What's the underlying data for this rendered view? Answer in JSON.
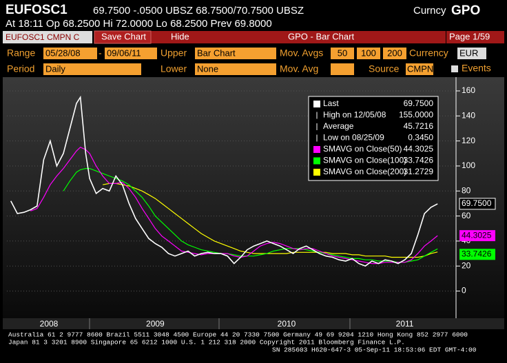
{
  "header": {
    "ticker": "EUFOSC1",
    "quote": "69.7500 -.0500 UBSZ 68.7500/70.7500 UBSZ",
    "market": "Curncy",
    "function": "GPO",
    "line2": "At 18:11 Op 68.2500  Hi 72.0000  Lo 68.2500  Prev 69.8000"
  },
  "toolbar": {
    "security": "EUFOSC1 CMPN C",
    "save": "Save Chart",
    "hide": "Hide",
    "title": "GPO - Bar Chart",
    "page": "Page 1/59"
  },
  "controls": {
    "range_label": "Range",
    "start": "05/28/08",
    "dash": "-",
    "end": "09/06/11",
    "upper_label": "Upper",
    "upper": "Bar Chart",
    "movavgs_label": "Mov. Avgs",
    "ma1": "50",
    "ma2": "100",
    "ma3": "200",
    "currency_label": "Currency",
    "currency": "EUR",
    "period_label": "Period",
    "period": "Daily",
    "lower_label": "Lower",
    "lower": "None",
    "movavg_label": "Mov. Avg",
    "source_label": "Source",
    "source": "CMPN",
    "events": "Events"
  },
  "chart_data": {
    "type": "line",
    "x": [
      2008.4,
      2008.45,
      2008.5,
      2008.55,
      2008.6,
      2008.65,
      2008.7,
      2008.75,
      2008.8,
      2008.85,
      2008.9,
      2008.93,
      2008.97,
      2009.0,
      2009.05,
      2009.1,
      2009.15,
      2009.2,
      2009.25,
      2009.3,
      2009.35,
      2009.4,
      2009.45,
      2009.5,
      2009.55,
      2009.6,
      2009.65,
      2009.7,
      2009.75,
      2009.8,
      2009.85,
      2009.9,
      2009.95,
      2010.0,
      2010.05,
      2010.1,
      2010.15,
      2010.2,
      2010.25,
      2010.3,
      2010.35,
      2010.4,
      2010.45,
      2010.5,
      2010.55,
      2010.6,
      2010.65,
      2010.7,
      2010.75,
      2010.8,
      2010.85,
      2010.9,
      2010.95,
      2011.0,
      2011.05,
      2011.1,
      2011.15,
      2011.2,
      2011.25,
      2011.3,
      2011.35,
      2011.4,
      2011.45,
      2011.5,
      2011.55,
      2011.6,
      2011.65
    ],
    "series": [
      {
        "name": "Last",
        "color": "#ffffff",
        "values": [
          72,
          62,
          63,
          65,
          68,
          105,
          120,
          100,
          110,
          130,
          150,
          155,
          110,
          90,
          78,
          82,
          80,
          92,
          85,
          70,
          58,
          50,
          42,
          38,
          35,
          30,
          28,
          30,
          32,
          28,
          30,
          31,
          30,
          30,
          28,
          22,
          27,
          33,
          36,
          38,
          40,
          38,
          36,
          33,
          30,
          34,
          36,
          33,
          30,
          28,
          27,
          25,
          24,
          26,
          22,
          20,
          24,
          22,
          25,
          24,
          22,
          25,
          30,
          45,
          62,
          67,
          69.75
        ]
      },
      {
        "name": "SMAVG on Close(50)",
        "color": "#ff00ff",
        "values": [
          null,
          null,
          null,
          64,
          66,
          75,
          85,
          92,
          98,
          105,
          112,
          115,
          113,
          110,
          100,
          92,
          86,
          86,
          87,
          82,
          75,
          66,
          58,
          50,
          44,
          40,
          36,
          32,
          31,
          30,
          29,
          30,
          30,
          30,
          30,
          28,
          27,
          28,
          32,
          36,
          38,
          39,
          38,
          36,
          34,
          33,
          34,
          34,
          32,
          30,
          28,
          27,
          26,
          25,
          24,
          23,
          22,
          22,
          23,
          23,
          23,
          23,
          25,
          30,
          36,
          40,
          44.3025
        ]
      },
      {
        "name": "SMAVG on Close(100)",
        "color": "#00ff00",
        "values": [
          null,
          null,
          null,
          null,
          null,
          null,
          null,
          null,
          80,
          88,
          95,
          97,
          98,
          98,
          96,
          94,
          92,
          90,
          88,
          85,
          80,
          75,
          68,
          60,
          55,
          50,
          45,
          40,
          37,
          35,
          33,
          32,
          31,
          30,
          30,
          29,
          28,
          28,
          28,
          29,
          30,
          32,
          33,
          34,
          34,
          34,
          33,
          32,
          31,
          30,
          29,
          28,
          27,
          26,
          26,
          25,
          25,
          24,
          24,
          24,
          23,
          23,
          24,
          25,
          28,
          31,
          33.7426
        ]
      },
      {
        "name": "SMAVG on Close(200)",
        "color": "#ffff00",
        "values": [
          null,
          null,
          null,
          null,
          null,
          null,
          null,
          null,
          null,
          null,
          null,
          null,
          null,
          null,
          null,
          85,
          86,
          86,
          85,
          84,
          82,
          80,
          77,
          74,
          70,
          66,
          62,
          58,
          54,
          50,
          46,
          43,
          40,
          38,
          36,
          34,
          32,
          31,
          30,
          30,
          30,
          30,
          30,
          30,
          31,
          31,
          31,
          31,
          31,
          31,
          30,
          30,
          30,
          29,
          29,
          28,
          28,
          28,
          28,
          27,
          27,
          27,
          27,
          27,
          28,
          30,
          31.2729
        ]
      }
    ],
    "legend": {
      "last": "69.7500",
      "high_label": "High on 12/05/08",
      "high": "155.0000",
      "average_label": "Average",
      "average": "45.7216",
      "low_label": "Low on 08/25/09",
      "low": "0.3450",
      "sma50": "44.3025",
      "sma100": "33.7426",
      "sma200": "31.2729"
    },
    "xlim": [
      2008.37,
      2011.78
    ],
    "xticks": [
      {
        "value": 2008.69,
        "label": "2008"
      },
      {
        "value": 2009.5,
        "label": "2009"
      },
      {
        "value": 2010.5,
        "label": "2010"
      },
      {
        "value": 2011.4,
        "label": "2011"
      }
    ],
    "ylim": [
      -14,
      171
    ],
    "yticks": [
      0,
      20,
      40,
      60,
      80,
      100,
      120,
      140,
      160
    ],
    "grid": true
  },
  "footer": {
    "line1": "Australia 61 2 9777 8600 Brazil 5511 3048 4500 Europe 44 20 7330 7500 Germany 49 69 9204 1210 Hong Kong 852 2977 6000",
    "line2": "Japan 81 3 3201 8900       Singapore 65 6212 1000       U.S. 1 212 318 2000       Copyright 2011 Bloomberg Finance L.P.",
    "line3": "SN 285603 H620-647-3 05-Sep-11 18:53:06 EDT  GMT-4:00"
  }
}
